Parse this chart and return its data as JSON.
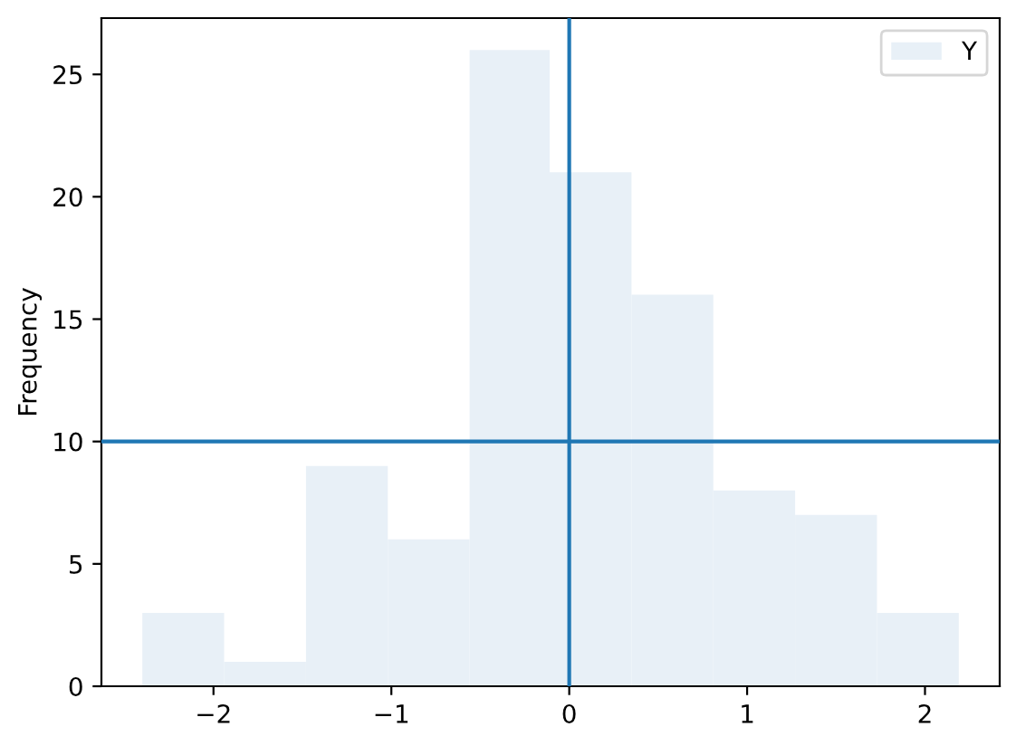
{
  "chart_data": {
    "type": "histogram",
    "ylabel": "Frequency",
    "bins": [
      -2.4,
      -1.94,
      -1.48,
      -1.02,
      -0.56,
      -0.11,
      0.35,
      0.81,
      1.27,
      1.73,
      2.19
    ],
    "series": [
      {
        "name": "Y",
        "color": "#e8f0f7",
        "values": [
          3,
          1,
          9,
          6,
          26,
          21,
          16,
          8,
          7,
          3
        ]
      }
    ],
    "xlim": [
      -2.63,
      2.42
    ],
    "xticks": [
      {
        "value": -2,
        "label": "−2"
      },
      {
        "value": -1,
        "label": "−1"
      },
      0,
      1,
      2
    ],
    "ylim": [
      0,
      27.3
    ],
    "yticks": [
      0,
      5,
      10,
      15,
      20,
      25
    ],
    "ref_lines": [
      {
        "axis": "x",
        "value": 0,
        "color": "#1f77b4"
      },
      {
        "axis": "y",
        "value": 10,
        "color": "#1f77b4"
      }
    ],
    "legend": "top right",
    "grid": false
  }
}
